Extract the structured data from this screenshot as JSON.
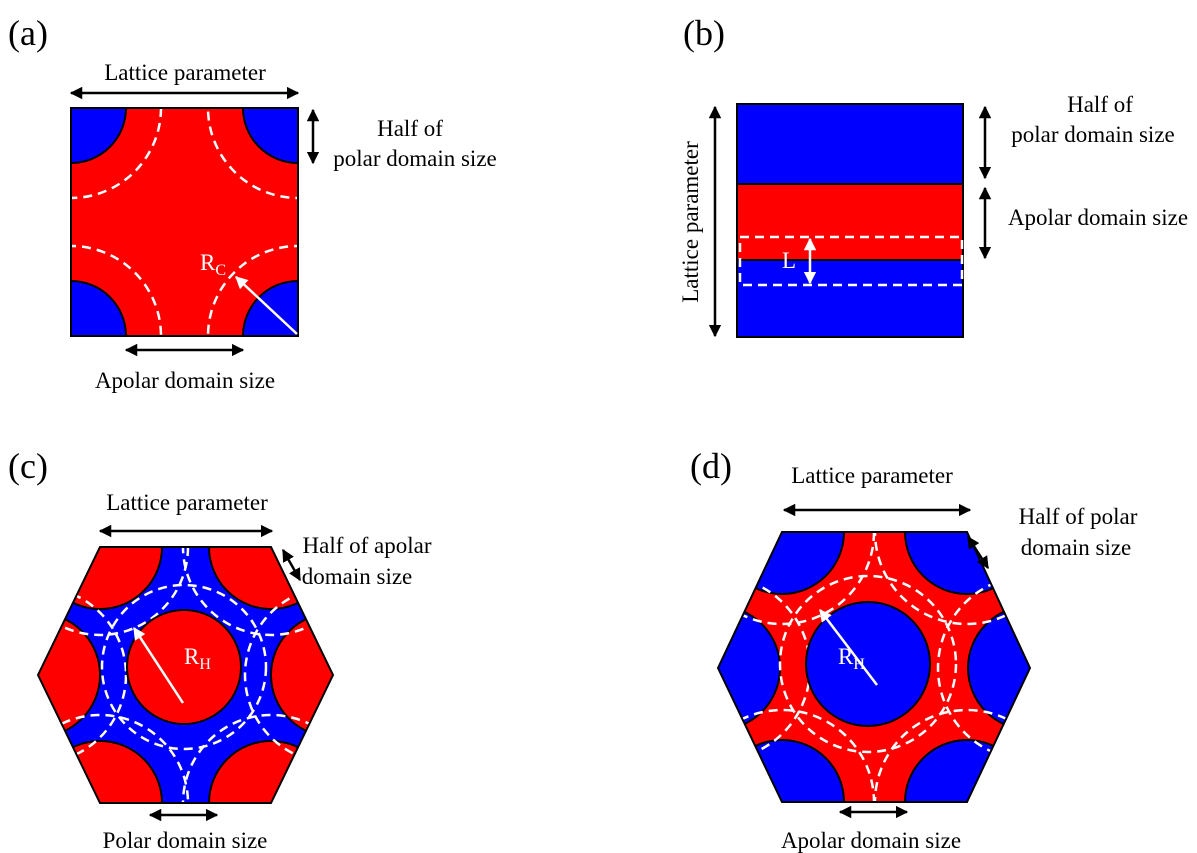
{
  "panels": [
    {
      "label": "(a)",
      "top": "Lattice parameter",
      "side_line1": "Half of",
      "side_line2": "polar domain size",
      "radius_symbol": "R",
      "radius_subscript": "C",
      "bottom": "Apolar domain size"
    },
    {
      "label": "(b)",
      "left": "Lattice parameter",
      "side_line1": "Half of",
      "side_line2": "polar domain size",
      "side_line3": "Apolar domain size",
      "thickness_symbol": "L"
    },
    {
      "label": "(c)",
      "top": "Lattice parameter",
      "side_line1": "Half of apolar",
      "side_line2": "domain size",
      "radius_symbol": "R",
      "radius_subscript": "H",
      "bottom": "Polar domain size"
    },
    {
      "label": "(d)",
      "top": "Lattice parameter",
      "side_line1": "Half of polar",
      "side_line2": "domain size",
      "radius_symbol": "R",
      "radius_subscript": "H",
      "bottom": "Apolar domain size"
    }
  ]
}
